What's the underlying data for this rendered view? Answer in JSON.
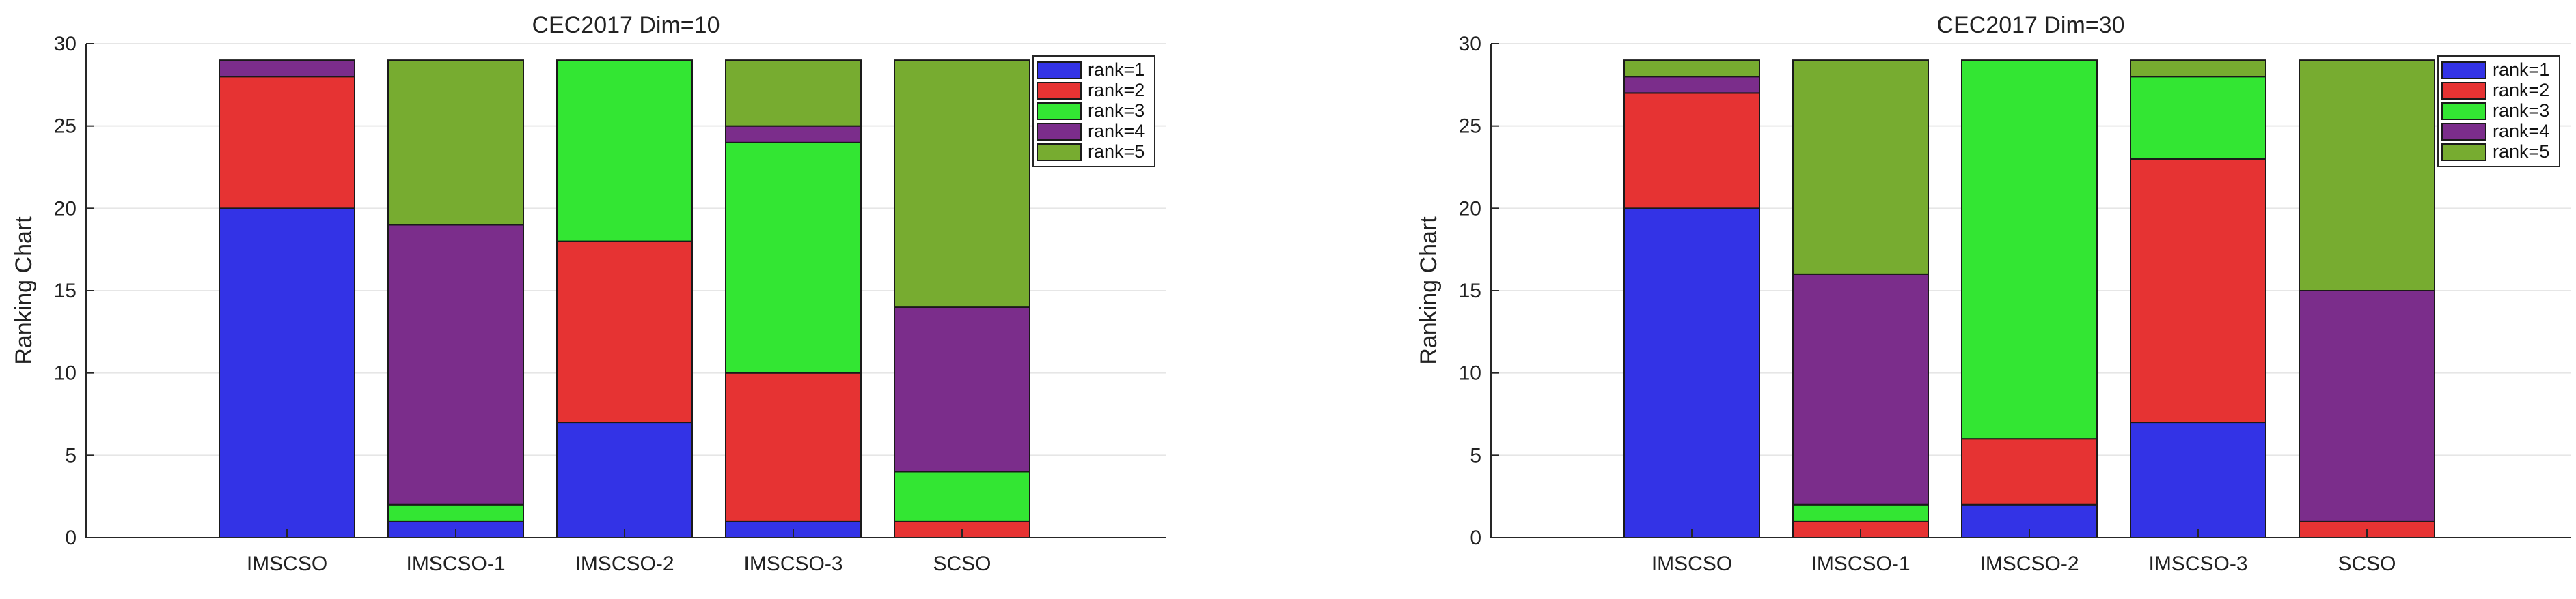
{
  "chart_data": [
    {
      "type": "bar",
      "stacked": true,
      "title": "CEC2017 Dim=10",
      "ylabel": "Ranking Chart",
      "xlabel": "",
      "ylim": [
        0,
        30
      ],
      "yticks": [
        0,
        5,
        10,
        15,
        20,
        25,
        30
      ],
      "grid": true,
      "legend_position": "top-right",
      "categories": [
        "IMSCSO",
        "IMSCSO-1",
        "IMSCSO-2",
        "IMSCSO-3",
        "SCSO"
      ],
      "series": [
        {
          "name": "rank=1",
          "color": "#3333e6",
          "values": [
            20,
            1,
            7,
            1,
            0
          ]
        },
        {
          "name": "rank=2",
          "color": "#e63333",
          "values": [
            8,
            0,
            11,
            9,
            1
          ]
        },
        {
          "name": "rank=3",
          "color": "#33e633",
          "values": [
            0,
            1,
            11,
            14,
            3
          ]
        },
        {
          "name": "rank=4",
          "color": "#7b2d8b",
          "values": [
            1,
            17,
            0,
            1,
            10
          ]
        },
        {
          "name": "rank=5",
          "color": "#77ac30",
          "values": [
            0,
            10,
            0,
            4,
            15
          ]
        }
      ]
    },
    {
      "type": "bar",
      "stacked": true,
      "title": "CEC2017 Dim=30",
      "ylabel": "Ranking Chart",
      "xlabel": "",
      "ylim": [
        0,
        30
      ],
      "yticks": [
        0,
        5,
        10,
        15,
        20,
        25,
        30
      ],
      "grid": true,
      "legend_position": "top-right",
      "categories": [
        "IMSCSO",
        "IMSCSO-1",
        "IMSCSO-2",
        "IMSCSO-3",
        "SCSO"
      ],
      "series": [
        {
          "name": "rank=1",
          "color": "#3333e6",
          "values": [
            20,
            0,
            2,
            7,
            0
          ]
        },
        {
          "name": "rank=2",
          "color": "#e63333",
          "values": [
            7,
            1,
            4,
            16,
            1
          ]
        },
        {
          "name": "rank=3",
          "color": "#33e633",
          "values": [
            0,
            1,
            23,
            5,
            0
          ]
        },
        {
          "name": "rank=4",
          "color": "#7b2d8b",
          "values": [
            1,
            14,
            0,
            0,
            14
          ]
        },
        {
          "name": "rank=5",
          "color": "#77ac30",
          "values": [
            1,
            13,
            0,
            1,
            14
          ]
        }
      ]
    }
  ]
}
